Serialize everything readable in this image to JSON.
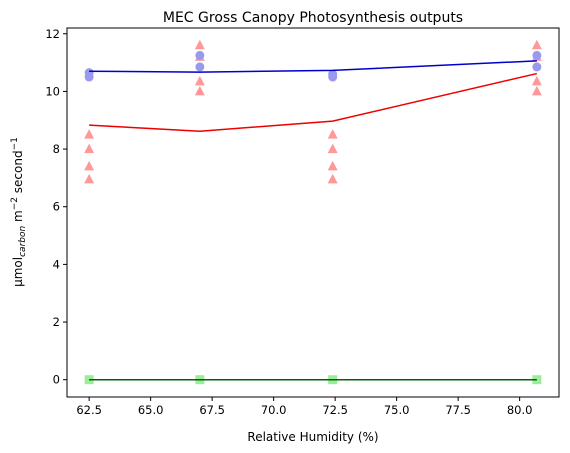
{
  "chart_data": {
    "type": "scatter",
    "title": "MEC Gross Canopy Photosynthesis outputs",
    "xlabel": "Relative Humidity (%)",
    "ylabel": {
      "base": "µmol",
      "sub": "carbon",
      "mid": " m",
      "sup1": "−2",
      "end": " second",
      "sup2": "−1"
    },
    "xlim": [
      61.6,
      81.6
    ],
    "ylim": [
      -0.6,
      12.2
    ],
    "x_ticks": [
      62.5,
      65.0,
      67.5,
      70.0,
      72.5,
      75.0,
      77.5,
      80.0
    ],
    "x_tick_labels": [
      "62.5",
      "65.0",
      "67.5",
      "70.0",
      "72.5",
      "75.0",
      "77.5",
      "80.0"
    ],
    "y_ticks": [
      0,
      2,
      4,
      6,
      8,
      10,
      12
    ],
    "y_tick_labels": [
      "0",
      "2",
      "4",
      "6",
      "8",
      "10",
      "12"
    ],
    "grid": false,
    "series": [
      {
        "marker": "triangle",
        "marker_color": "#ff9999",
        "line_color": "#ee0000",
        "points": [
          [
            62.5,
            8.5
          ],
          [
            62.5,
            8.0
          ],
          [
            62.5,
            7.4
          ],
          [
            62.5,
            6.95
          ],
          [
            67.0,
            11.6
          ],
          [
            67.0,
            11.2
          ],
          [
            67.0,
            10.35
          ],
          [
            67.0,
            10.0
          ],
          [
            72.4,
            8.5
          ],
          [
            72.4,
            8.0
          ],
          [
            72.4,
            7.4
          ],
          [
            72.4,
            6.95
          ],
          [
            80.7,
            11.6
          ],
          [
            80.7,
            11.2
          ],
          [
            80.7,
            10.35
          ],
          [
            80.7,
            10.0
          ]
        ],
        "line": [
          [
            62.5,
            8.83
          ],
          [
            67.0,
            8.62
          ],
          [
            72.4,
            8.97
          ],
          [
            80.7,
            10.62
          ]
        ]
      },
      {
        "marker": "circle",
        "marker_color": "#9999ee",
        "line_color": "#0000cc",
        "points": [
          [
            62.5,
            10.65
          ],
          [
            62.5,
            10.5
          ],
          [
            67.0,
            11.25
          ],
          [
            67.0,
            10.85
          ],
          [
            72.4,
            10.6
          ],
          [
            72.4,
            10.5
          ],
          [
            80.7,
            11.25
          ],
          [
            80.7,
            10.85
          ]
        ],
        "line": [
          [
            62.5,
            10.7
          ],
          [
            67.0,
            10.67
          ],
          [
            72.4,
            10.73
          ],
          [
            80.7,
            11.06
          ]
        ]
      },
      {
        "marker": "square",
        "marker_color": "#99ee99",
        "line_color": "#006600",
        "points": [
          [
            62.5,
            0
          ],
          [
            67.0,
            0
          ],
          [
            72.4,
            0
          ],
          [
            80.7,
            0
          ]
        ],
        "line": [
          [
            62.5,
            0
          ],
          [
            67.0,
            0
          ],
          [
            72.4,
            0
          ],
          [
            80.7,
            0
          ]
        ]
      }
    ]
  }
}
